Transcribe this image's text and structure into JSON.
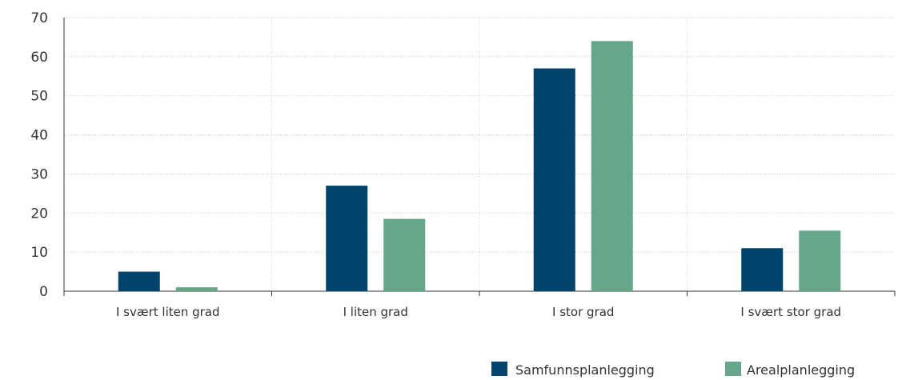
{
  "chart_data": {
    "type": "bar",
    "title": "",
    "xlabel": "",
    "ylabel": "",
    "categories": [
      "I svært liten grad",
      "I liten grad",
      "I stor grad",
      "I svært stor grad"
    ],
    "series": [
      {
        "name": "Samfunnsplanlegging",
        "values": [
          5,
          27,
          57,
          11
        ],
        "color": "#00436b"
      },
      {
        "name": "Arealplanlegging",
        "values": [
          1,
          18.5,
          64,
          15.5
        ],
        "color": "#66a68a"
      }
    ],
    "ylim": [
      0,
      70
    ],
    "yticks": [
      0,
      10,
      20,
      30,
      40,
      50,
      60,
      70
    ],
    "grid": true,
    "legend_position": "bottom-right"
  }
}
